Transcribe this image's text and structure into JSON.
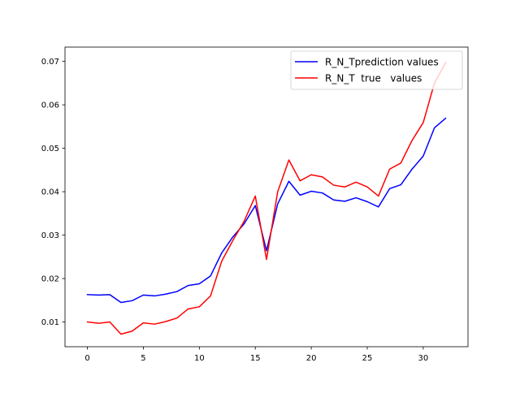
{
  "chart_data": {
    "type": "line",
    "title": "",
    "xlabel": "",
    "ylabel": "",
    "xlim": [
      -2.0,
      34.0
    ],
    "ylim": [
      0.0043,
      0.0733
    ],
    "xticks": [
      0,
      5,
      10,
      15,
      20,
      25,
      30
    ],
    "yticks": [
      0.01,
      0.02,
      0.03,
      0.04,
      0.05,
      0.06,
      0.07
    ],
    "ytick_decimals": 2,
    "grid": false,
    "legend_position": "top-right",
    "x": [
      0,
      1,
      2,
      3,
      4,
      5,
      6,
      7,
      8,
      9,
      10,
      11,
      12,
      13,
      14,
      15,
      16,
      17,
      18,
      19,
      20,
      21,
      22,
      23,
      24,
      25,
      26,
      27,
      28,
      29,
      30,
      31,
      32
    ],
    "series": [
      {
        "name": "R_N_Tprediction values",
        "color": "#0000ff",
        "values": [
          0.0163,
          0.0162,
          0.0163,
          0.0145,
          0.0149,
          0.0162,
          0.016,
          0.0164,
          0.017,
          0.0184,
          0.0188,
          0.0206,
          0.0259,
          0.0296,
          0.0326,
          0.0368,
          0.0264,
          0.0372,
          0.0424,
          0.0392,
          0.0401,
          0.0397,
          0.0381,
          0.0378,
          0.0386,
          0.0377,
          0.0365,
          0.0407,
          0.0416,
          0.0452,
          0.0482,
          0.0547,
          0.0569
        ]
      },
      {
        "name": "R_N_T  true   values",
        "color": "#ff0000",
        "values": [
          0.01,
          0.0097,
          0.01,
          0.0072,
          0.0079,
          0.0098,
          0.0095,
          0.0101,
          0.0109,
          0.013,
          0.0135,
          0.016,
          0.024,
          0.0288,
          0.0332,
          0.039,
          0.0244,
          0.04,
          0.0473,
          0.0425,
          0.0439,
          0.0434,
          0.0415,
          0.0411,
          0.0422,
          0.0411,
          0.039,
          0.0452,
          0.0466,
          0.0518,
          0.0559,
          0.065,
          0.0697
        ]
      }
    ]
  }
}
